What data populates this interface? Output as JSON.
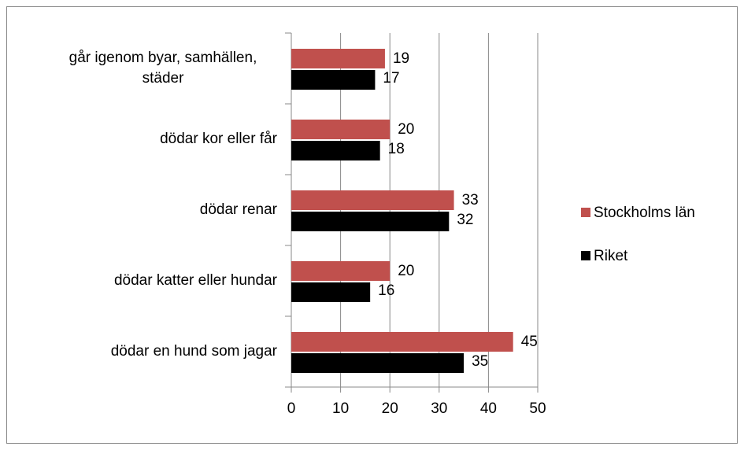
{
  "chart_data": {
    "type": "barh",
    "categories": [
      "går igenom byar, samhällen, städer",
      "dödar kor eller får",
      "dödar renar",
      "dödar katter eller hundar",
      "dödar en hund som jagar"
    ],
    "series": [
      {
        "name": "Stockholms län",
        "color": "#c0504d",
        "values": [
          19,
          20,
          33,
          20,
          45
        ]
      },
      {
        "name": "Riket",
        "color": "#000000",
        "values": [
          17,
          18,
          32,
          16,
          35
        ]
      }
    ],
    "xlim": [
      0,
      50
    ],
    "xticks": [
      0,
      10,
      20,
      30,
      40,
      50
    ],
    "grid": true,
    "legend": "right"
  }
}
